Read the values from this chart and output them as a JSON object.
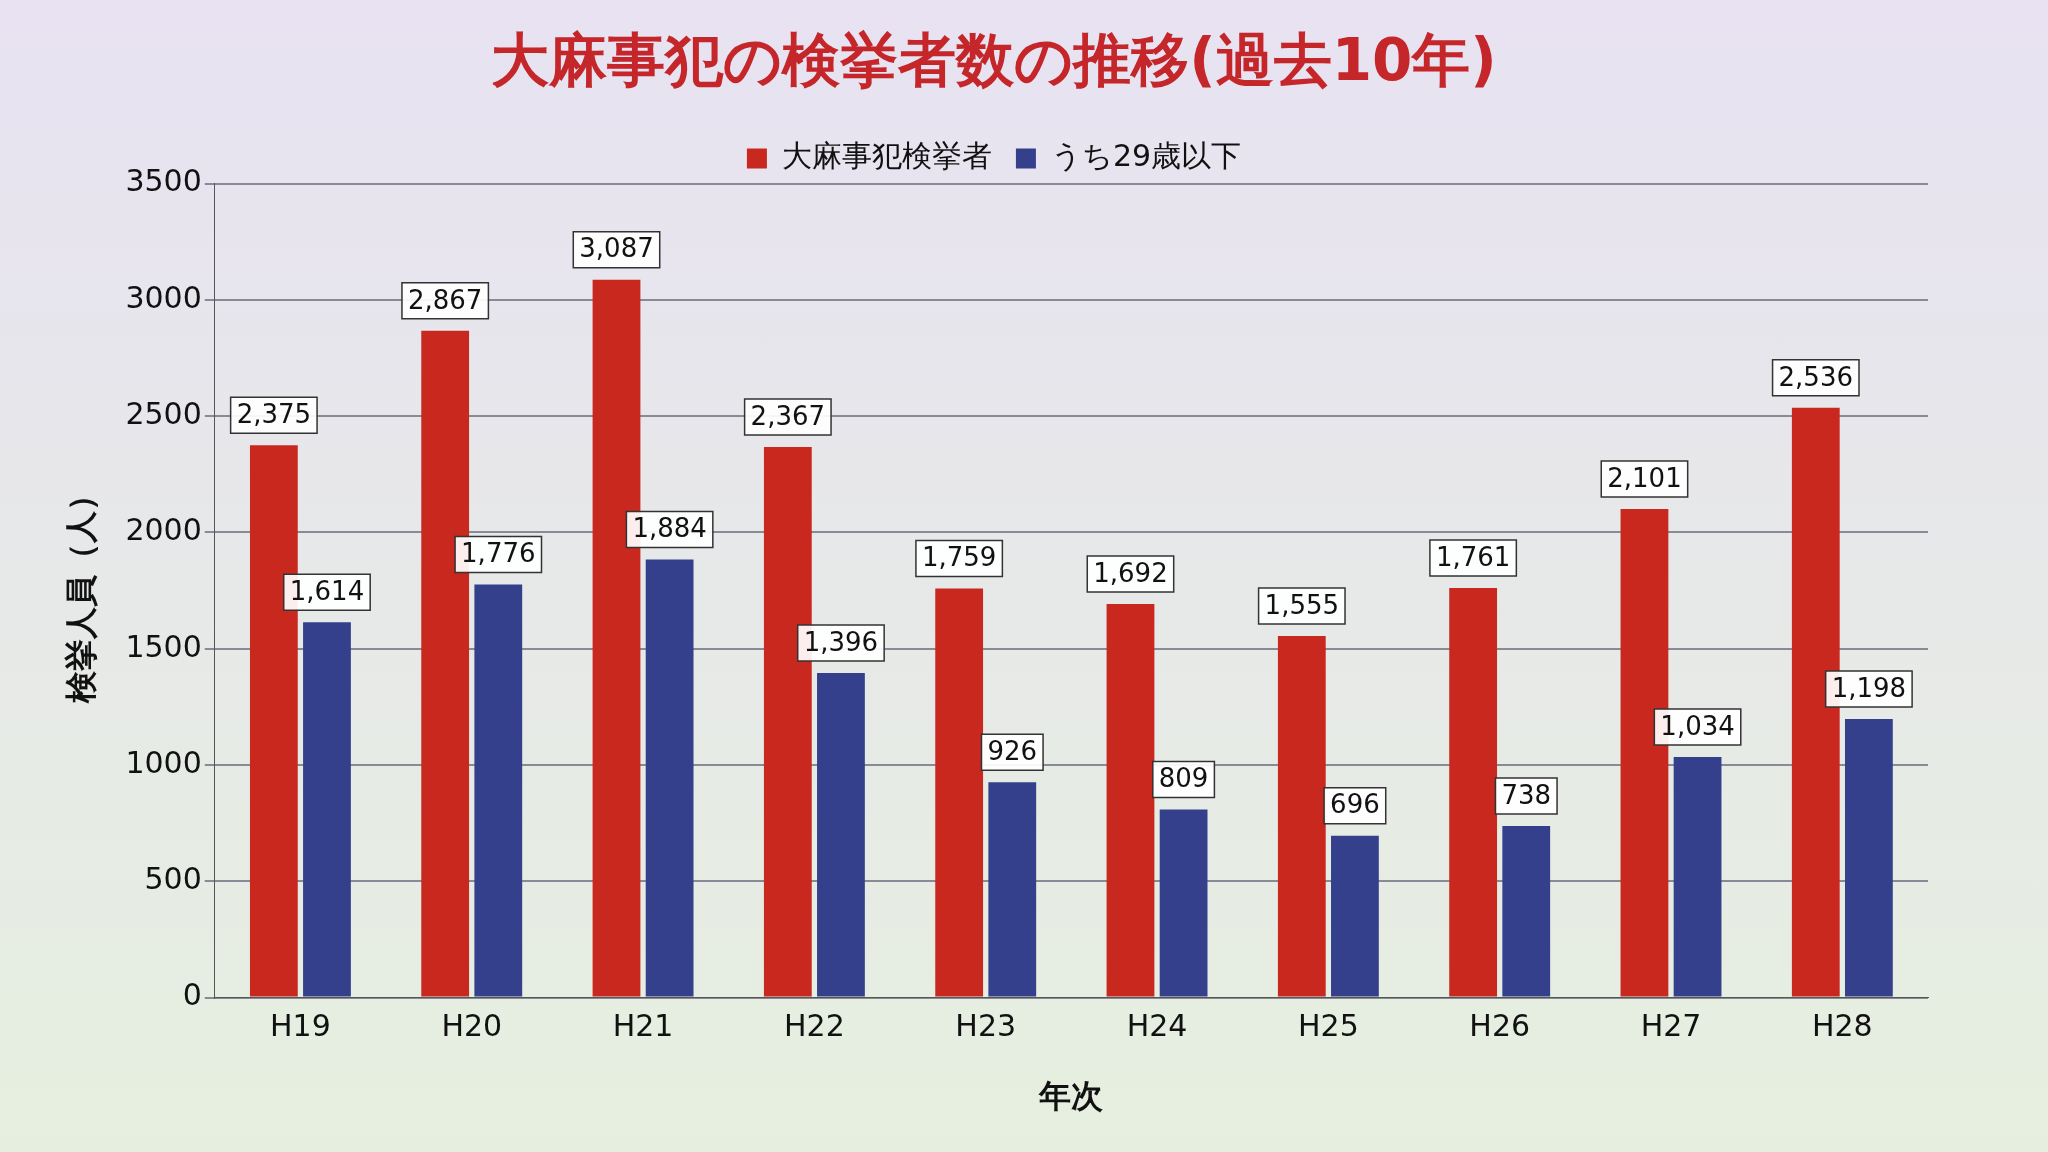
{
  "chart_data": {
    "type": "bar",
    "title": "大麻事犯の検挙者数の推移(過去10年)",
    "xlabel": "年次",
    "ylabel": "検挙人員（人）",
    "categories": [
      "H19",
      "H20",
      "H21",
      "H22",
      "H23",
      "H24",
      "H25",
      "H26",
      "H27",
      "H28"
    ],
    "series": [
      {
        "name": "大麻事犯検挙者",
        "color": "#c8281e",
        "values": [
          2375,
          2867,
          3087,
          2367,
          1759,
          1692,
          1555,
          1761,
          2101,
          2536
        ],
        "value_labels": [
          "2,375",
          "2,867",
          "3,087",
          "2,367",
          "1,759",
          "1,692",
          "1,555",
          "1,761",
          "2,101",
          "2,536"
        ]
      },
      {
        "name": "うち29歳以下",
        "color": "#34408c",
        "values": [
          1614,
          1776,
          1884,
          1396,
          926,
          809,
          696,
          738,
          1034,
          1198
        ],
        "value_labels": [
          "1,614",
          "1,776",
          "1,884",
          "1,396",
          "926",
          "809",
          "696",
          "738",
          "1,034",
          "1,198"
        ]
      }
    ],
    "ylim": [
      0,
      3500
    ],
    "yticks": [
      0,
      500,
      1000,
      1500,
      2000,
      2500,
      3000,
      3500
    ],
    "grid": "y",
    "legend": "top"
  }
}
